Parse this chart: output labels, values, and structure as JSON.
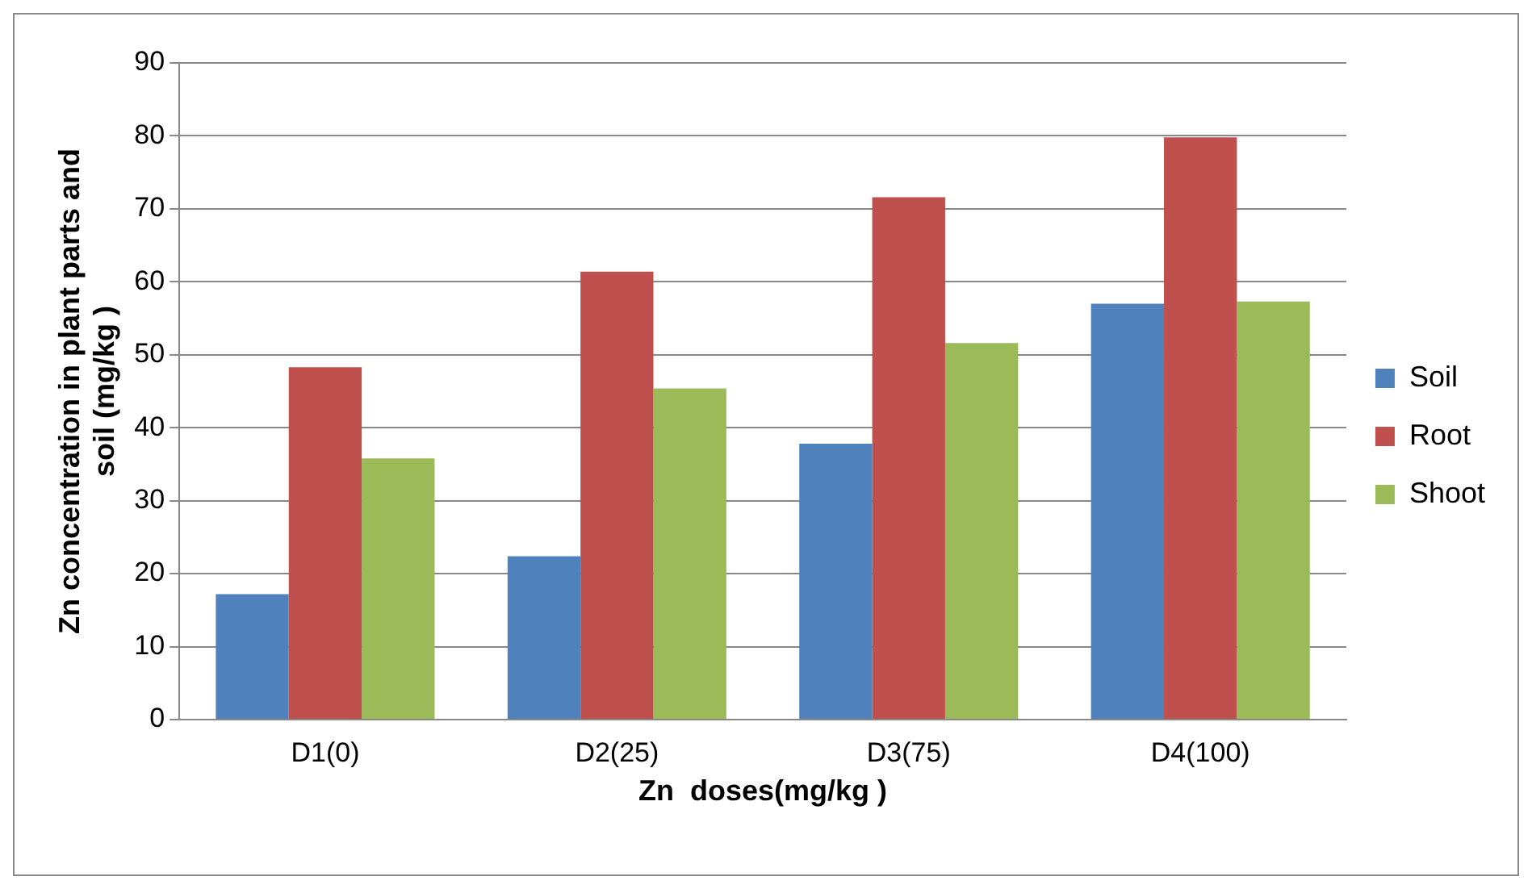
{
  "chart_data": {
    "type": "bar",
    "xlabel": "Zn  doses(mg/kg )",
    "ylabel": "Zn concentration in plant parts and soil (mg/kg )",
    "categories": [
      "D1(0)",
      "D2(25)",
      "D3(75)",
      "D4(100)"
    ],
    "series": [
      {
        "name": "Soil",
        "color": "#4f81bd",
        "values": [
          17.2,
          22.4,
          37.8,
          57.0
        ]
      },
      {
        "name": "Root",
        "color": "#c0504d",
        "values": [
          48.3,
          61.4,
          71.6,
          79.8
        ]
      },
      {
        "name": "Shoot",
        "color": "#9bbb59",
        "values": [
          35.8,
          45.4,
          51.6,
          57.3
        ]
      }
    ],
    "ylim": [
      0,
      90
    ],
    "yticks": [
      0,
      10,
      20,
      30,
      40,
      50,
      60,
      70,
      80,
      90
    ],
    "grid": "y",
    "legend": "right"
  }
}
